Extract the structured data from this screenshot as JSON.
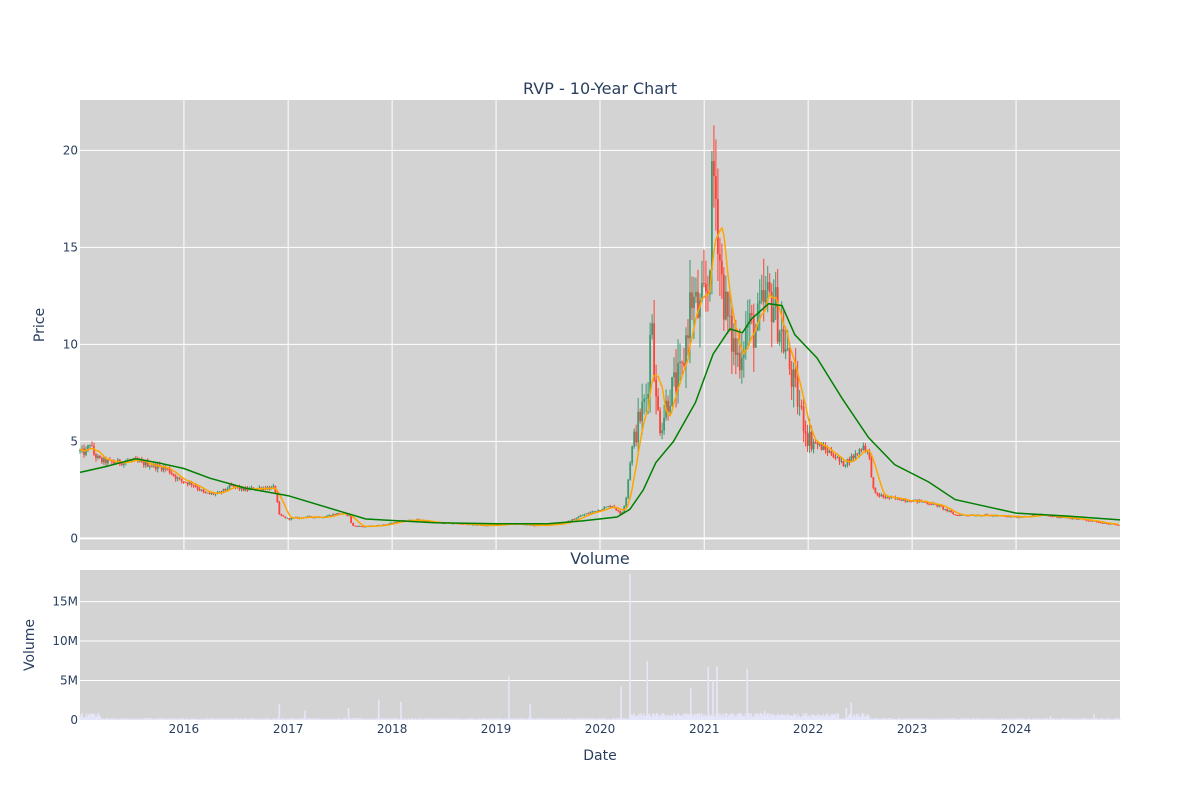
{
  "chart_data": [
    {
      "type": "candlestick",
      "title": "RVP - 10-Year Chart",
      "ylabel": "Price",
      "xlabel": "",
      "ylim": [
        -0.6,
        22.6
      ],
      "xlim": [
        "2015-01-01",
        "2024-12-31"
      ],
      "yticks": [
        0,
        5,
        10,
        15,
        20
      ],
      "grid": true,
      "legend": "none",
      "colors": {
        "up": "#3d9970",
        "down": "#ff4136",
        "ma_short": "#ffa500",
        "ma_long": "#008000",
        "plot_bg": "#d3d3d3",
        "grid": "#ffffff"
      },
      "price_path": [
        [
          "2015-01-01",
          4.5
        ],
        [
          "2015-01-20",
          4.4
        ],
        [
          "2015-02-05",
          4.9
        ],
        [
          "2015-02-20",
          4.3
        ],
        [
          "2015-03-15",
          4.0
        ],
        [
          "2015-05-01",
          3.9
        ],
        [
          "2015-07-01",
          4.0
        ],
        [
          "2015-09-01",
          3.8
        ],
        [
          "2015-11-01",
          3.6
        ],
        [
          "2015-12-15",
          3.0
        ],
        [
          "2016-02-01",
          2.8
        ],
        [
          "2016-03-15",
          2.3
        ],
        [
          "2016-05-01",
          2.3
        ],
        [
          "2016-06-15",
          2.7
        ],
        [
          "2016-08-01",
          2.5
        ],
        [
          "2016-09-15",
          2.6
        ],
        [
          "2016-11-15",
          2.6
        ],
        [
          "2016-12-01",
          1.2
        ],
        [
          "2017-01-01",
          1.0
        ],
        [
          "2017-03-01",
          1.1
        ],
        [
          "2017-05-01",
          1.1
        ],
        [
          "2017-07-01",
          1.3
        ],
        [
          "2017-08-05",
          1.2
        ],
        [
          "2017-08-12",
          0.65
        ],
        [
          "2017-10-01",
          0.6
        ],
        [
          "2017-12-01",
          0.7
        ],
        [
          "2018-02-01",
          0.9
        ],
        [
          "2018-04-01",
          0.95
        ],
        [
          "2018-06-01",
          0.8
        ],
        [
          "2018-09-01",
          0.75
        ],
        [
          "2018-12-01",
          0.65
        ],
        [
          "2019-03-01",
          0.75
        ],
        [
          "2019-06-01",
          0.65
        ],
        [
          "2019-09-01",
          0.8
        ],
        [
          "2019-11-01",
          1.2
        ],
        [
          "2020-01-01",
          1.5
        ],
        [
          "2020-02-15",
          1.7
        ],
        [
          "2020-03-15",
          1.2
        ],
        [
          "2020-04-01",
          2.0
        ],
        [
          "2020-04-20",
          4.5
        ],
        [
          "2020-05-15",
          6.0
        ],
        [
          "2020-06-15",
          7.5
        ],
        [
          "2020-07-01",
          12.0
        ],
        [
          "2020-07-15",
          7.0
        ],
        [
          "2020-08-01",
          5.8
        ],
        [
          "2020-09-01",
          7.5
        ],
        [
          "2020-10-15",
          8.5
        ],
        [
          "2020-11-15",
          12.5
        ],
        [
          "2020-12-15",
          11.5
        ],
        [
          "2021-01-15",
          13.0
        ],
        [
          "2021-02-01",
          19.0
        ],
        [
          "2021-02-15",
          17.0
        ],
        [
          "2021-03-01",
          13.5
        ],
        [
          "2021-04-01",
          10.5
        ],
        [
          "2021-05-01",
          9.3
        ],
        [
          "2021-06-01",
          11.0
        ],
        [
          "2021-07-01",
          10.7
        ],
        [
          "2021-08-01",
          12.2
        ],
        [
          "2021-09-01",
          12.3
        ],
        [
          "2021-10-01",
          10.5
        ],
        [
          "2021-11-01",
          8.5
        ],
        [
          "2021-12-01",
          6.8
        ],
        [
          "2022-01-01",
          5.2
        ],
        [
          "2022-02-15",
          4.7
        ],
        [
          "2022-04-01",
          4.3
        ],
        [
          "2022-05-01",
          3.8
        ],
        [
          "2022-06-15",
          4.3
        ],
        [
          "2022-07-15",
          4.8
        ],
        [
          "2022-08-01",
          4.4
        ],
        [
          "2022-08-20",
          2.3
        ],
        [
          "2022-10-01",
          2.1
        ],
        [
          "2022-12-01",
          2.0
        ],
        [
          "2023-02-01",
          1.9
        ],
        [
          "2023-04-01",
          1.7
        ],
        [
          "2023-06-01",
          1.2
        ],
        [
          "2023-09-01",
          1.2
        ],
        [
          "2024-01-01",
          1.1
        ],
        [
          "2024-04-01",
          1.2
        ],
        [
          "2024-07-01",
          1.05
        ],
        [
          "2024-09-01",
          0.95
        ],
        [
          "2024-12-31",
          0.65
        ]
      ],
      "ma_long": [
        [
          "2015-01-01",
          3.4
        ],
        [
          "2015-04-01",
          3.7
        ],
        [
          "2015-07-15",
          4.1
        ],
        [
          "2015-10-01",
          3.9
        ],
        [
          "2016-01-01",
          3.6
        ],
        [
          "2016-04-01",
          3.1
        ],
        [
          "2016-08-01",
          2.6
        ],
        [
          "2017-01-01",
          2.2
        ],
        [
          "2017-07-01",
          1.4
        ],
        [
          "2017-10-01",
          1.0
        ],
        [
          "2018-06-01",
          0.8
        ],
        [
          "2019-01-01",
          0.75
        ],
        [
          "2019-07-01",
          0.75
        ],
        [
          "2019-11-01",
          0.9
        ],
        [
          "2020-03-01",
          1.1
        ],
        [
          "2020-04-15",
          1.5
        ],
        [
          "2020-06-01",
          2.5
        ],
        [
          "2020-07-15",
          3.9
        ],
        [
          "2020-09-15",
          5.0
        ],
        [
          "2020-12-01",
          7.0
        ],
        [
          "2021-02-01",
          9.5
        ],
        [
          "2021-04-01",
          10.8
        ],
        [
          "2021-05-15",
          10.6
        ],
        [
          "2021-06-15",
          11.3
        ],
        [
          "2021-08-15",
          12.1
        ],
        [
          "2021-10-01",
          12.0
        ],
        [
          "2021-11-15",
          10.5
        ],
        [
          "2022-02-01",
          9.3
        ],
        [
          "2022-05-01",
          7.2
        ],
        [
          "2022-08-01",
          5.2
        ],
        [
          "2022-11-01",
          3.8
        ],
        [
          "2023-03-01",
          2.9
        ],
        [
          "2023-06-01",
          2.0
        ],
        [
          "2023-10-01",
          1.6
        ],
        [
          "2024-01-01",
          1.3
        ],
        [
          "2024-07-01",
          1.15
        ],
        [
          "2024-12-31",
          0.95
        ]
      ]
    },
    {
      "type": "bar",
      "title": "Volume",
      "ylabel": "Volume",
      "xlabel": "Date",
      "ylim": [
        0,
        19000000
      ],
      "yticks": [
        0,
        5000000,
        10000000,
        15000000
      ],
      "ytick_labels": [
        "0",
        "5M",
        "10M",
        "15M"
      ],
      "xtick_labels": [
        "2016",
        "2017",
        "2018",
        "2019",
        "2020",
        "2021",
        "2022",
        "2023",
        "2024"
      ],
      "bar_color": "#e6e6fa",
      "volume_spikes": [
        [
          "2016-12-01",
          2000000
        ],
        [
          "2017-03-01",
          1200000
        ],
        [
          "2017-08-01",
          1500000
        ],
        [
          "2017-11-15",
          2600000
        ],
        [
          "2018-02-01",
          2300000
        ],
        [
          "2019-02-15",
          5500000
        ],
        [
          "2019-05-01",
          2000000
        ],
        [
          "2020-03-15",
          4200000
        ],
        [
          "2020-04-15",
          18500000
        ],
        [
          "2020-06-15",
          7500000
        ],
        [
          "2020-11-15",
          4000000
        ],
        [
          "2021-01-15",
          6700000
        ],
        [
          "2021-02-01",
          5000000
        ],
        [
          "2021-02-15",
          6800000
        ],
        [
          "2021-06-01",
          6500000
        ],
        [
          "2021-08-01",
          1200000
        ],
        [
          "2022-05-15",
          1500000
        ],
        [
          "2022-06-01",
          2200000
        ],
        [
          "2024-05-01",
          500000
        ],
        [
          "2024-10-01",
          700000
        ]
      ]
    }
  ]
}
